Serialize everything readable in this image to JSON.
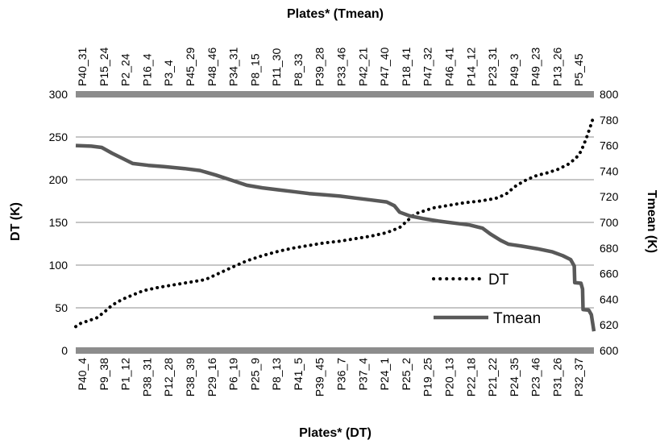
{
  "chart_data": {
    "type": "line",
    "title": "",
    "top_xlabel": "Plates* (Tmean)",
    "bottom_xlabel": "Plates* (DT)",
    "ylabel_left": "DT (K)",
    "ylabel_right": "Tmean (K)",
    "ylim_left": [
      0,
      300
    ],
    "ylim_right": [
      600,
      800
    ],
    "yticks_left": [
      "0",
      "50",
      "100",
      "150",
      "200",
      "250",
      "300"
    ],
    "yticks_right": [
      "600",
      "620",
      "640",
      "660",
      "680",
      "700",
      "720",
      "740",
      "760",
      "780",
      "800"
    ],
    "grid": true,
    "legend_position": "right",
    "top_tick_labels": [
      "P40_31",
      "P15_24",
      "P2_24",
      "P16_4",
      "P3_4",
      "P45_29",
      "P48_46",
      "P34_31",
      "P8_15",
      "P11_30",
      "P8_33",
      "P39_28",
      "P33_46",
      "P42_21",
      "P47_40",
      "P18_41",
      "P47_32",
      "P46_41",
      "P14_12",
      "P23_31",
      "P49_3",
      "P49_23",
      "P13_26",
      "P5_45"
    ],
    "bottom_tick_labels": [
      "P40_4",
      "P9_38",
      "P1_12",
      "P38_31",
      "P12_28",
      "P38_39",
      "P29_16",
      "P6_19",
      "P25_9",
      "P8_13",
      "P41_5",
      "P39_45",
      "P36_7",
      "P37_4",
      "P24_1",
      "P25_2",
      "P19_25",
      "P20_13",
      "P22_18",
      "P21_22",
      "P24_35",
      "P23_46",
      "P31_26",
      "P32_37"
    ],
    "x_range": [
      0,
      1
    ],
    "series": [
      {
        "name": "DT",
        "style": "dotted",
        "color": "#000000",
        "axis": "left",
        "points": [
          [
            0,
            28
          ],
          [
            0.01,
            32
          ],
          [
            0.025,
            35
          ],
          [
            0.04,
            38
          ],
          [
            0.055,
            45
          ],
          [
            0.07,
            53
          ],
          [
            0.09,
            60
          ],
          [
            0.11,
            65
          ],
          [
            0.13,
            70
          ],
          [
            0.16,
            74
          ],
          [
            0.19,
            77
          ],
          [
            0.22,
            80
          ],
          [
            0.25,
            83
          ],
          [
            0.275,
            90
          ],
          [
            0.3,
            97
          ],
          [
            0.33,
            105
          ],
          [
            0.36,
            111
          ],
          [
            0.39,
            116
          ],
          [
            0.42,
            120
          ],
          [
            0.45,
            123
          ],
          [
            0.48,
            126
          ],
          [
            0.51,
            128
          ],
          [
            0.54,
            131
          ],
          [
            0.57,
            134
          ],
          [
            0.6,
            138
          ],
          [
            0.625,
            144
          ],
          [
            0.64,
            152
          ],
          [
            0.655,
            160
          ],
          [
            0.67,
            163
          ],
          [
            0.69,
            167
          ],
          [
            0.72,
            170
          ],
          [
            0.75,
            173
          ],
          [
            0.78,
            175
          ],
          [
            0.81,
            178
          ],
          [
            0.83,
            183
          ],
          [
            0.85,
            193
          ],
          [
            0.87,
            200
          ],
          [
            0.89,
            205
          ],
          [
            0.91,
            208
          ],
          [
            0.93,
            212
          ],
          [
            0.95,
            218
          ],
          [
            0.965,
            225
          ],
          [
            0.975,
            233
          ],
          [
            0.985,
            248
          ],
          [
            0.993,
            262
          ],
          [
            1.0,
            275
          ]
        ]
      },
      {
        "name": "Tmean",
        "style": "solid",
        "color": "#595959",
        "axis": "right",
        "points": [
          [
            0,
            760
          ],
          [
            0.03,
            759.5
          ],
          [
            0.05,
            758.5
          ],
          [
            0.07,
            754
          ],
          [
            0.09,
            750
          ],
          [
            0.11,
            746
          ],
          [
            0.14,
            744.5
          ],
          [
            0.17,
            743.5
          ],
          [
            0.21,
            742
          ],
          [
            0.24,
            740.5
          ],
          [
            0.27,
            737
          ],
          [
            0.3,
            733
          ],
          [
            0.33,
            729
          ],
          [
            0.36,
            727
          ],
          [
            0.39,
            725.5
          ],
          [
            0.42,
            724
          ],
          [
            0.45,
            722.5
          ],
          [
            0.48,
            721.5
          ],
          [
            0.51,
            720.5
          ],
          [
            0.54,
            719
          ],
          [
            0.57,
            717.5
          ],
          [
            0.6,
            716
          ],
          [
            0.615,
            713
          ],
          [
            0.625,
            708
          ],
          [
            0.645,
            705
          ],
          [
            0.67,
            703
          ],
          [
            0.7,
            701
          ],
          [
            0.73,
            699.5
          ],
          [
            0.76,
            698
          ],
          [
            0.785,
            695.5
          ],
          [
            0.8,
            691
          ],
          [
            0.82,
            686
          ],
          [
            0.835,
            683
          ],
          [
            0.86,
            681.5
          ],
          [
            0.89,
            679.5
          ],
          [
            0.92,
            677
          ],
          [
            0.94,
            674
          ],
          [
            0.955,
            671
          ],
          [
            0.962,
            666
          ],
          [
            0.963,
            653
          ],
          [
            0.975,
            652.5
          ],
          [
            0.978,
            648
          ],
          [
            0.979,
            632
          ],
          [
            0.99,
            631.5
          ],
          [
            0.995,
            628
          ],
          [
            1.0,
            615
          ]
        ]
      }
    ]
  }
}
